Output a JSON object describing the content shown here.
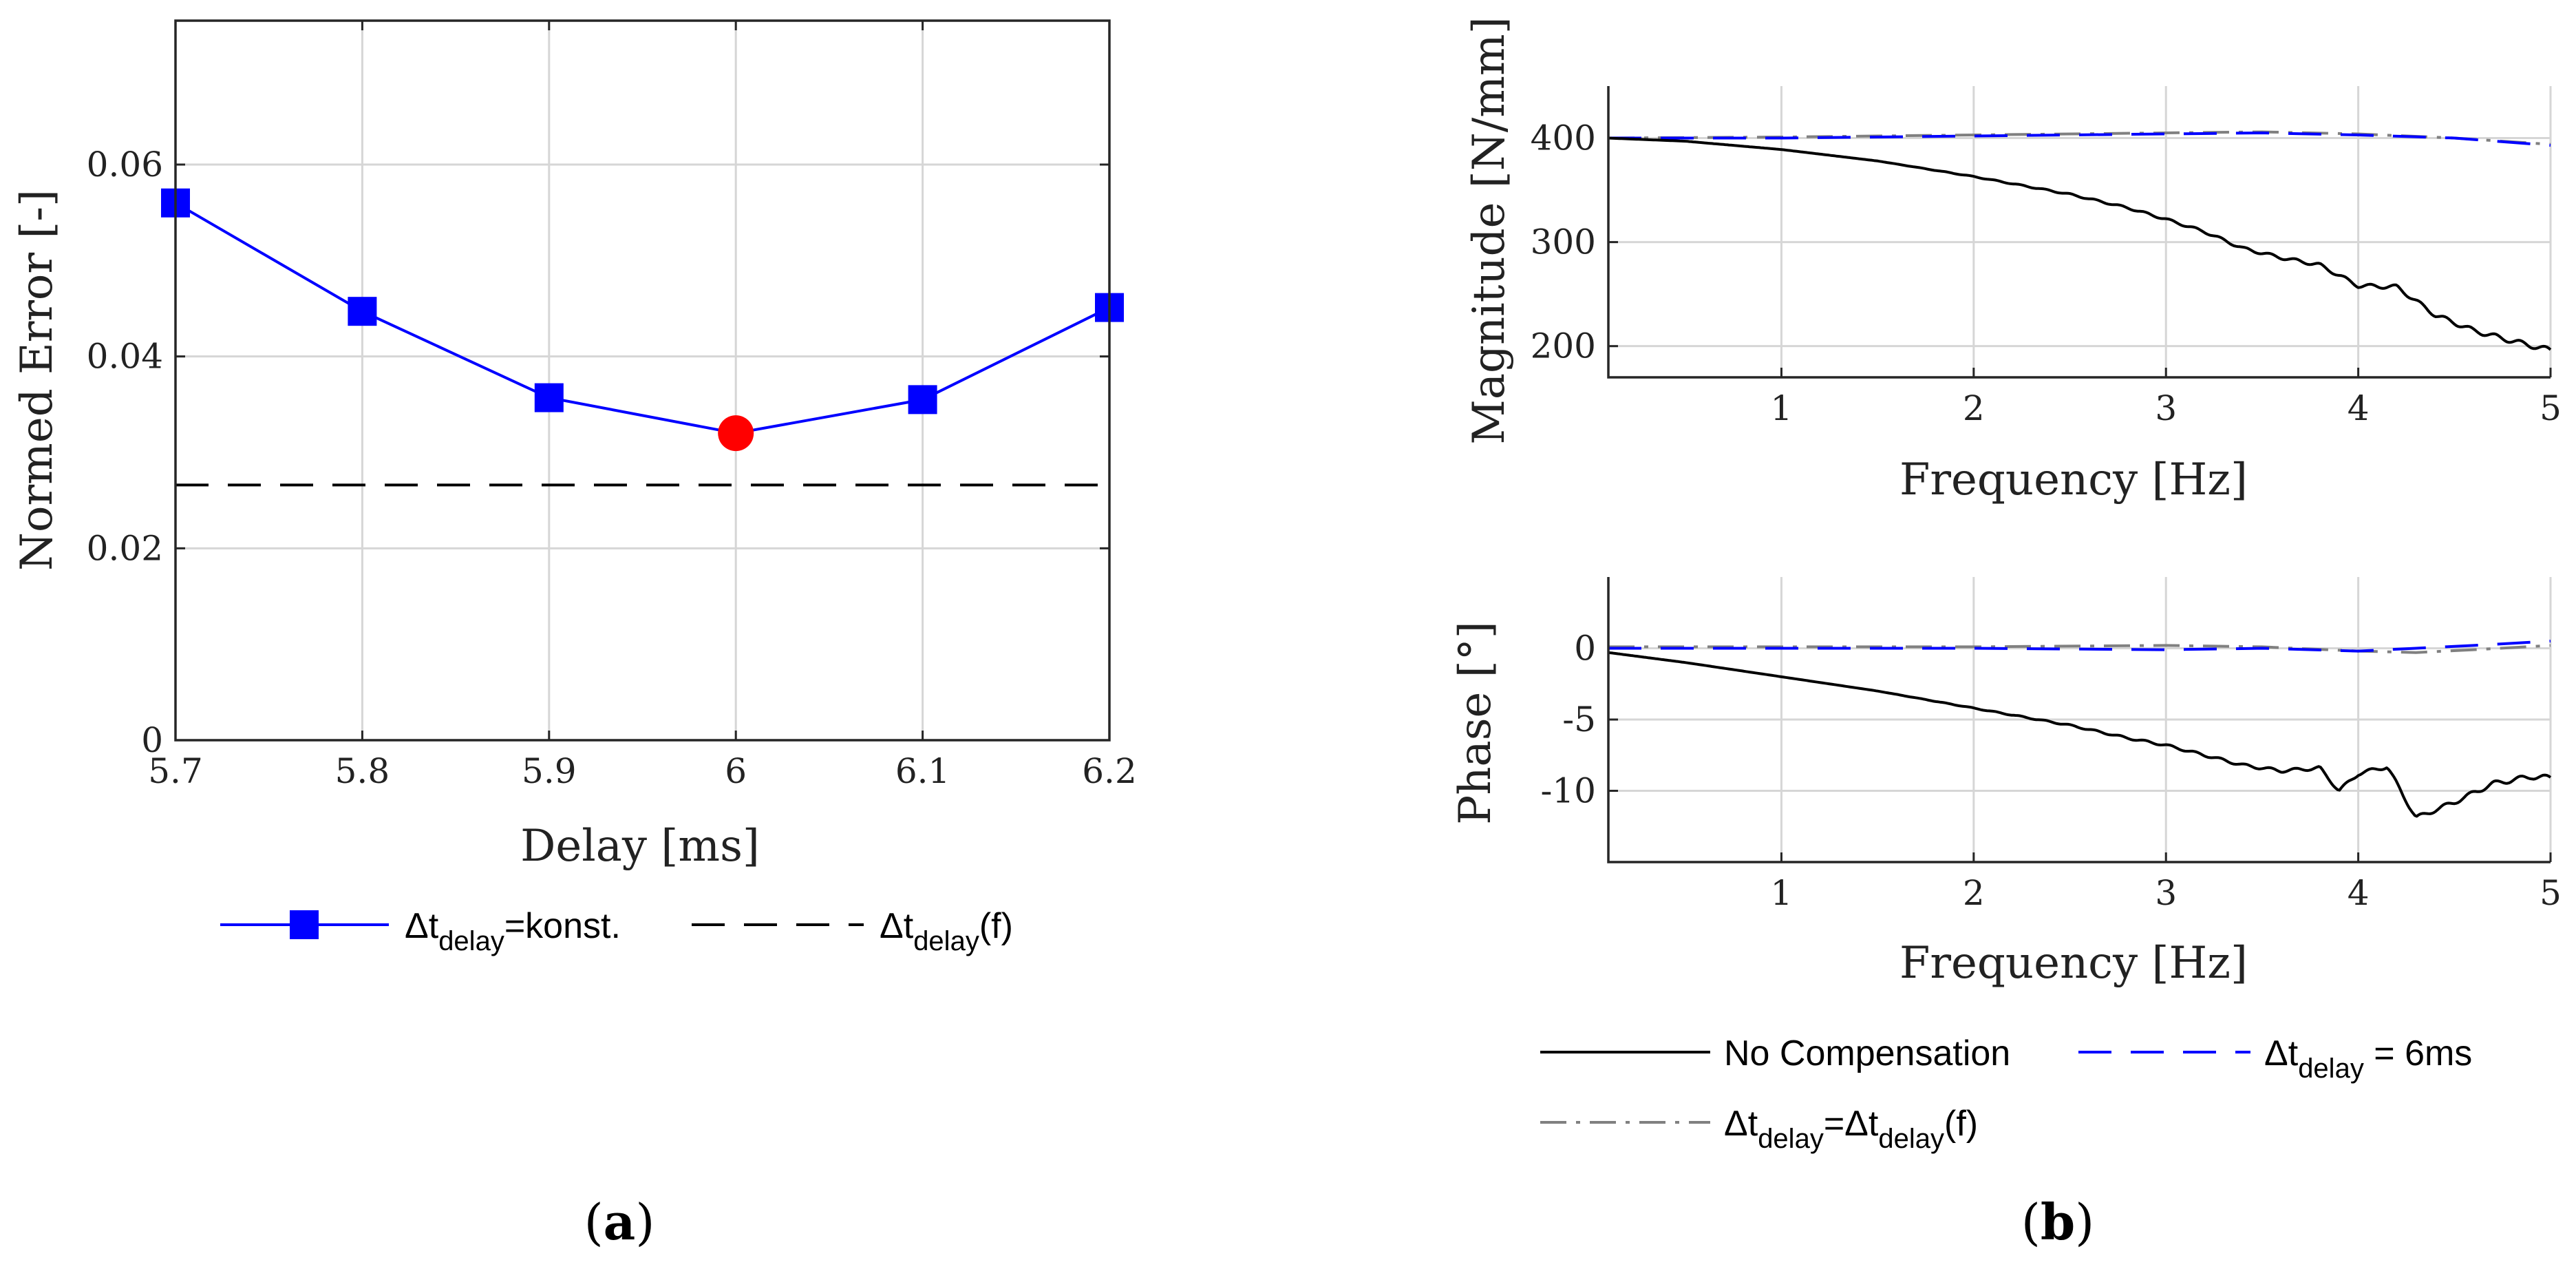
{
  "chart_data": [
    {
      "id": "a",
      "type": "line",
      "panel_label": "a",
      "xlabel": "Delay [ms]",
      "ylabel": "Normed Error [-]",
      "xlim": [
        5.7,
        6.2
      ],
      "ylim": [
        0,
        0.075
      ],
      "xticks": [
        "5.7",
        "5.8",
        "5.9",
        "6",
        "6.1",
        "6.2"
      ],
      "yticks": [
        "0",
        "0.02",
        "0.04",
        "0.06"
      ],
      "grid": true,
      "series": [
        {
          "name": "Δt_delay=konst.",
          "style": "solid-square-markers",
          "color": "#0000ff",
          "x": [
            5.7,
            5.8,
            5.9,
            6.0,
            6.1,
            6.2
          ],
          "values": [
            0.056,
            0.0447,
            0.0357,
            0.032,
            0.0355,
            0.0451
          ]
        },
        {
          "name": "Δt_delay(f)",
          "style": "dashed",
          "color": "#000000",
          "constant": 0.0266
        }
      ],
      "highlight": {
        "x": 6.0,
        "y": 0.032,
        "color": "#ff0000"
      },
      "legend": [
        {
          "base": "Δt",
          "sub": "delay",
          "rest": "=konst."
        },
        {
          "base": "Δt",
          "sub": "delay",
          "rest": "(f)"
        }
      ]
    },
    {
      "id": "b-magnitude",
      "type": "line",
      "panel_label": "b",
      "xlabel": "Frequency [Hz]",
      "ylabel": "Magnitude [N/mm]",
      "xlim": [
        0.1,
        5
      ],
      "ylim": [
        170,
        450
      ],
      "xticks": [
        "1",
        "2",
        "3",
        "4",
        "5"
      ],
      "yticks": [
        "200",
        "300",
        "400"
      ],
      "grid": true,
      "series": [
        {
          "name": "No Compensation",
          "color": "#000000",
          "x": [
            0.1,
            0.5,
            1.0,
            1.5,
            2.0,
            2.5,
            2.8,
            3.0,
            3.2,
            3.4,
            3.6,
            3.8,
            4.0,
            4.2,
            4.4,
            4.6,
            4.8,
            5.0
          ],
          "values": [
            400,
            397,
            389,
            378,
            363,
            346,
            333,
            322,
            310,
            294,
            285,
            278,
            258,
            257,
            230,
            215,
            205,
            196
          ]
        },
        {
          "name": "Δt_delay = 6ms",
          "color": "#0000ff",
          "x": [
            0.1,
            1.0,
            2.0,
            3.0,
            3.5,
            4.0,
            4.5,
            5.0
          ],
          "values": [
            400,
            400,
            402,
            404,
            405,
            403,
            400,
            393
          ]
        },
        {
          "name": "Δt_delay=Δt_delay(f)",
          "color": "#808080",
          "x": [
            0.1,
            1.0,
            2.0,
            3.0,
            3.5,
            4.0,
            4.5,
            5.0
          ],
          "values": [
            400,
            401,
            403,
            405,
            406,
            404,
            400,
            394
          ]
        }
      ]
    },
    {
      "id": "b-phase",
      "type": "line",
      "panel_label": "b",
      "xlabel": "Frequency [Hz]",
      "ylabel": "Phase [°]",
      "xlim": [
        0.1,
        5
      ],
      "ylim": [
        -15,
        5
      ],
      "xticks": [
        "1",
        "2",
        "3",
        "4",
        "5"
      ],
      "yticks": [
        "0",
        "-5",
        "-10"
      ],
      "grid": true,
      "series": [
        {
          "name": "No Compensation",
          "color": "#000000",
          "x": [
            0.1,
            0.5,
            1.0,
            1.5,
            2.0,
            2.5,
            2.8,
            3.0,
            3.2,
            3.4,
            3.6,
            3.8,
            3.9,
            4.0,
            4.15,
            4.3,
            4.5,
            4.7,
            4.9,
            5.0
          ],
          "values": [
            -0.3,
            -1.0,
            -2.0,
            -3.0,
            -4.2,
            -5.4,
            -6.3,
            -6.8,
            -7.5,
            -8.2,
            -8.6,
            -8.4,
            -10.0,
            -8.8,
            -8.3,
            -11.9,
            -10.8,
            -9.5,
            -9.0,
            -9.1
          ]
        },
        {
          "name": "Δt_delay = 6ms",
          "color": "#0000ff",
          "x": [
            0.1,
            1.0,
            2.0,
            3.0,
            3.5,
            4.0,
            4.3,
            4.6,
            5.0
          ],
          "values": [
            0,
            0,
            0,
            -0.1,
            0,
            -0.2,
            0,
            0.2,
            0.5
          ]
        },
        {
          "name": "Δt_delay=Δt_delay(f)",
          "color": "#808080",
          "x": [
            0.1,
            1.0,
            2.0,
            3.0,
            3.5,
            4.0,
            4.3,
            4.6,
            5.0
          ],
          "values": [
            0.1,
            0.1,
            0.1,
            0.2,
            0.1,
            -0.2,
            -0.3,
            -0.1,
            0.2
          ]
        }
      ],
      "legend": [
        {
          "plain": "No Compensation"
        },
        {
          "base": "Δt",
          "sub": "delay",
          "rest": " = 6ms"
        },
        {
          "base": "Δt",
          "sub": "delay",
          "mid": "=Δt",
          "sub2": "delay",
          "rest": "(f)"
        }
      ]
    }
  ],
  "labels": {
    "a": {
      "open": "(",
      "letter": "a",
      "close": ")"
    },
    "b": {
      "open": "(",
      "letter": "b",
      "close": ")"
    }
  }
}
